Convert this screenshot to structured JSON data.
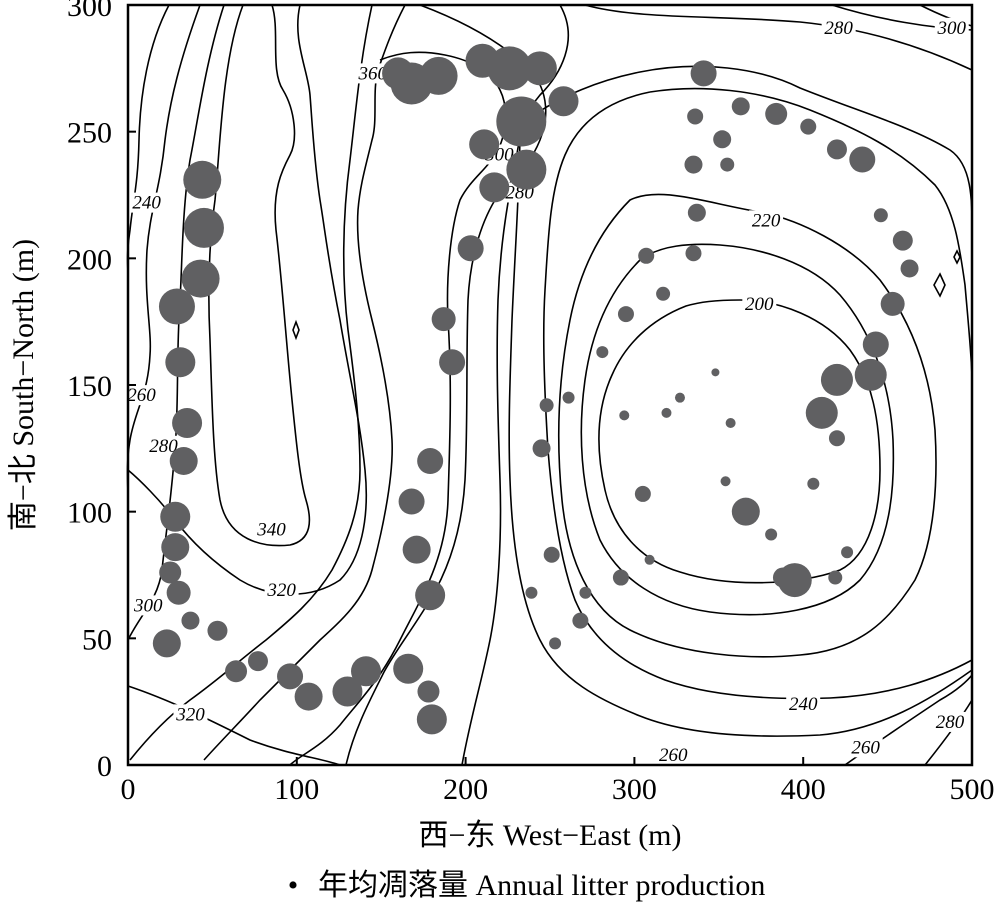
{
  "chart_data": {
    "type": "scatter",
    "title": "",
    "xlabel": "西−东 West−East (m)",
    "ylabel": "南−北 South−North (m)",
    "xlim": [
      0,
      500
    ],
    "ylim": [
      0,
      300
    ],
    "xticks": [
      0,
      100,
      200,
      300,
      400,
      500
    ],
    "yticks": [
      0,
      50,
      100,
      150,
      200,
      250,
      300
    ],
    "grid": false,
    "legend": {
      "placement": "bottom-center",
      "label": "年均凋落量 Annual litter production"
    },
    "contour_labels": [
      {
        "text": "360",
        "x": 145,
        "y": 273
      },
      {
        "text": "340",
        "x": 85,
        "y": 93
      },
      {
        "text": "320",
        "x": 91,
        "y": 69
      },
      {
        "text": "320",
        "x": 37,
        "y": 20
      },
      {
        "text": "300",
        "x": 12,
        "y": 63
      },
      {
        "text": "280",
        "x": 21,
        "y": 126
      },
      {
        "text": "260",
        "x": 8,
        "y": 146
      },
      {
        "text": "240",
        "x": 11,
        "y": 222
      },
      {
        "text": "300",
        "x": 220,
        "y": 241
      },
      {
        "text": "280",
        "x": 232,
        "y": 226
      },
      {
        "text": "220",
        "x": 378,
        "y": 215
      },
      {
        "text": "200",
        "x": 374,
        "y": 182
      },
      {
        "text": "240",
        "x": 400,
        "y": 24
      },
      {
        "text": "260",
        "x": 323,
        "y": 4
      },
      {
        "text": "260",
        "x": 437,
        "y": 7
      },
      {
        "text": "280",
        "x": 487,
        "y": 17
      },
      {
        "text": "280",
        "x": 421,
        "y": 291
      },
      {
        "text": "300",
        "x": 488,
        "y": 291
      }
    ],
    "series": [
      {
        "name": "年均凋落量 Annual litter production",
        "points": [
          {
            "x": 160,
            "y": 273,
            "v": 16
          },
          {
            "x": 168,
            "y": 269,
            "v": 21
          },
          {
            "x": 184,
            "y": 272,
            "v": 19
          },
          {
            "x": 210,
            "y": 278,
            "v": 17
          },
          {
            "x": 226,
            "y": 275,
            "v": 22
          },
          {
            "x": 244,
            "y": 275,
            "v": 17
          },
          {
            "x": 233,
            "y": 254,
            "v": 25
          },
          {
            "x": 258,
            "y": 262,
            "v": 15
          },
          {
            "x": 211,
            "y": 245,
            "v": 15
          },
          {
            "x": 236,
            "y": 235,
            "v": 20
          },
          {
            "x": 217,
            "y": 228,
            "v": 15
          },
          {
            "x": 203,
            "y": 204,
            "v": 13
          },
          {
            "x": 187,
            "y": 176,
            "v": 12
          },
          {
            "x": 192,
            "y": 159,
            "v": 13
          },
          {
            "x": 179,
            "y": 120,
            "v": 13
          },
          {
            "x": 168,
            "y": 104,
            "v": 13
          },
          {
            "x": 171,
            "y": 85,
            "v": 14
          },
          {
            "x": 179,
            "y": 67,
            "v": 15
          },
          {
            "x": 166,
            "y": 38,
            "v": 15
          },
          {
            "x": 178,
            "y": 29,
            "v": 11
          },
          {
            "x": 180,
            "y": 18,
            "v": 15
          },
          {
            "x": 141,
            "y": 37,
            "v": 15
          },
          {
            "x": 130,
            "y": 29,
            "v": 15
          },
          {
            "x": 107,
            "y": 27,
            "v": 14
          },
          {
            "x": 96,
            "y": 35,
            "v": 13
          },
          {
            "x": 77,
            "y": 41,
            "v": 10
          },
          {
            "x": 64,
            "y": 37,
            "v": 11
          },
          {
            "x": 53,
            "y": 53,
            "v": 10
          },
          {
            "x": 37,
            "y": 57,
            "v": 9
          },
          {
            "x": 23,
            "y": 48,
            "v": 14
          },
          {
            "x": 30,
            "y": 68,
            "v": 12
          },
          {
            "x": 25,
            "y": 76,
            "v": 11
          },
          {
            "x": 28,
            "y": 86,
            "v": 14
          },
          {
            "x": 28,
            "y": 98,
            "v": 15
          },
          {
            "x": 33,
            "y": 120,
            "v": 14
          },
          {
            "x": 35,
            "y": 135,
            "v": 15
          },
          {
            "x": 31,
            "y": 159,
            "v": 15
          },
          {
            "x": 29,
            "y": 181,
            "v": 18
          },
          {
            "x": 43,
            "y": 192,
            "v": 19
          },
          {
            "x": 45,
            "y": 212,
            "v": 20
          },
          {
            "x": 44,
            "y": 231,
            "v": 19
          },
          {
            "x": 341,
            "y": 273,
            "v": 13
          },
          {
            "x": 336,
            "y": 256,
            "v": 8
          },
          {
            "x": 363,
            "y": 260,
            "v": 9
          },
          {
            "x": 384,
            "y": 257,
            "v": 11
          },
          {
            "x": 403,
            "y": 252,
            "v": 8
          },
          {
            "x": 352,
            "y": 247,
            "v": 9
          },
          {
            "x": 335,
            "y": 237,
            "v": 9
          },
          {
            "x": 355,
            "y": 237,
            "v": 7
          },
          {
            "x": 420,
            "y": 243,
            "v": 10
          },
          {
            "x": 435,
            "y": 239,
            "v": 13
          },
          {
            "x": 337,
            "y": 218,
            "v": 9
          },
          {
            "x": 446,
            "y": 217,
            "v": 7
          },
          {
            "x": 459,
            "y": 207,
            "v": 10
          },
          {
            "x": 463,
            "y": 196,
            "v": 9
          },
          {
            "x": 335,
            "y": 202,
            "v": 8
          },
          {
            "x": 307,
            "y": 201,
            "v": 8
          },
          {
            "x": 317,
            "y": 186,
            "v": 7
          },
          {
            "x": 295,
            "y": 178,
            "v": 8
          },
          {
            "x": 453,
            "y": 182,
            "v": 12
          },
          {
            "x": 443,
            "y": 166,
            "v": 13
          },
          {
            "x": 281,
            "y": 163,
            "v": 6
          },
          {
            "x": 440,
            "y": 154,
            "v": 16
          },
          {
            "x": 420,
            "y": 152,
            "v": 16
          },
          {
            "x": 348,
            "y": 155,
            "v": 4
          },
          {
            "x": 327,
            "y": 145,
            "v": 5
          },
          {
            "x": 261,
            "y": 145,
            "v": 6
          },
          {
            "x": 248,
            "y": 142,
            "v": 7
          },
          {
            "x": 411,
            "y": 139,
            "v": 16
          },
          {
            "x": 294,
            "y": 138,
            "v": 5
          },
          {
            "x": 319,
            "y": 139,
            "v": 5
          },
          {
            "x": 357,
            "y": 135,
            "v": 5
          },
          {
            "x": 420,
            "y": 129,
            "v": 8
          },
          {
            "x": 245,
            "y": 125,
            "v": 9
          },
          {
            "x": 354,
            "y": 112,
            "v": 5
          },
          {
            "x": 406,
            "y": 111,
            "v": 6
          },
          {
            "x": 305,
            "y": 107,
            "v": 8
          },
          {
            "x": 366,
            "y": 100,
            "v": 14
          },
          {
            "x": 381,
            "y": 91,
            "v": 6
          },
          {
            "x": 251,
            "y": 83,
            "v": 8
          },
          {
            "x": 309,
            "y": 81,
            "v": 5
          },
          {
            "x": 426,
            "y": 84,
            "v": 6
          },
          {
            "x": 292,
            "y": 74,
            "v": 8
          },
          {
            "x": 388,
            "y": 74,
            "v": 10
          },
          {
            "x": 395,
            "y": 73,
            "v": 17
          },
          {
            "x": 419,
            "y": 74,
            "v": 7
          },
          {
            "x": 239,
            "y": 68,
            "v": 6
          },
          {
            "x": 271,
            "y": 68,
            "v": 6
          },
          {
            "x": 268,
            "y": 57,
            "v": 8
          },
          {
            "x": 253,
            "y": 48,
            "v": 6
          }
        ]
      }
    ]
  },
  "legend_marker": "•"
}
